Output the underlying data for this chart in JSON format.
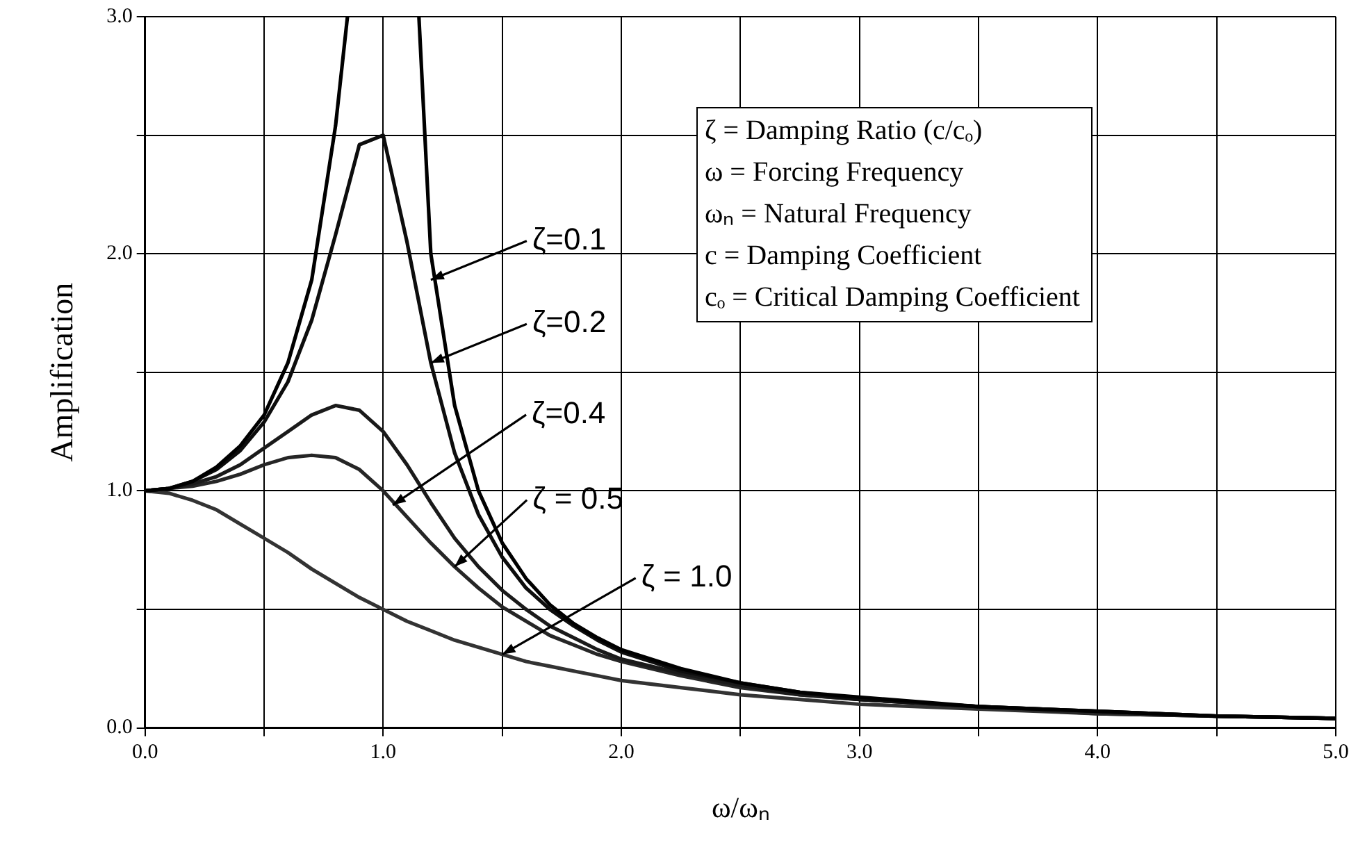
{
  "chart_data": {
    "type": "line",
    "xlabel": "ω/ωₙ",
    "ylabel": "Amplification",
    "xlim": [
      0,
      5
    ],
    "ylim": [
      0,
      3
    ],
    "xticks": [
      {
        "value": 0,
        "label": "0.0"
      },
      {
        "value": 0.5,
        "label": null
      },
      {
        "value": 1,
        "label": "1.0"
      },
      {
        "value": 1.5,
        "label": null
      },
      {
        "value": 2,
        "label": "2.0"
      },
      {
        "value": 2.5,
        "label": null
      },
      {
        "value": 3,
        "label": "3.0"
      },
      {
        "value": 3.5,
        "label": null
      },
      {
        "value": 4,
        "label": "4.0"
      },
      {
        "value": 4.5,
        "label": null
      },
      {
        "value": 5,
        "label": "5.0"
      }
    ],
    "yticks": [
      {
        "value": 0,
        "label": "0.0"
      },
      {
        "value": 0.5,
        "label": null
      },
      {
        "value": 1,
        "label": "1.0"
      },
      {
        "value": 1.5,
        "label": null
      },
      {
        "value": 2,
        "label": "2.0"
      },
      {
        "value": 2.5,
        "label": null
      },
      {
        "value": 3,
        "label": "3.0"
      }
    ],
    "grid": true,
    "legend": false,
    "marker": "none",
    "line_style": "solid",
    "x": [
      0,
      0.1,
      0.2,
      0.3,
      0.4,
      0.5,
      0.6,
      0.7,
      0.8,
      0.9,
      1.0,
      1.1,
      1.2,
      1.3,
      1.4,
      1.5,
      1.6,
      1.7,
      1.8,
      1.9,
      2.0,
      2.25,
      2.5,
      2.75,
      3,
      3.5,
      4,
      4.5,
      5
    ],
    "series": [
      {
        "color": "#000000",
        "x": [
          0,
          0.1,
          0.2,
          0.3,
          0.4,
          0.5,
          0.6,
          0.7,
          0.8,
          0.85,
          1.0,
          1.15,
          1.2,
          1.3,
          1.4,
          1.5,
          1.6,
          1.7,
          1.8,
          1.9,
          2.0,
          2.25,
          2.5,
          2.75,
          3,
          3.5,
          4,
          4.5,
          5
        ],
        "values": [
          1.0,
          1.01,
          1.04,
          1.1,
          1.19,
          1.32,
          1.54,
          1.89,
          2.54,
          3.0,
          null,
          3.0,
          2.0,
          1.36,
          1.0,
          0.78,
          0.63,
          0.52,
          0.44,
          0.38,
          0.33,
          0.25,
          0.19,
          0.15,
          0.13,
          0.09,
          0.07,
          0.05,
          0.04
        ]
      },
      {
        "color": "#0d0d0d",
        "values": [
          1.0,
          1.01,
          1.04,
          1.09,
          1.17,
          1.29,
          1.46,
          1.72,
          2.08,
          2.46,
          2.5,
          2.05,
          1.54,
          1.16,
          0.9,
          0.72,
          0.59,
          0.5,
          0.43,
          0.37,
          0.32,
          0.24,
          0.19,
          0.15,
          0.12,
          0.09,
          0.07,
          0.05,
          0.04
        ]
      },
      {
        "color": "#1a1a1a",
        "values": [
          1.0,
          1.01,
          1.03,
          1.06,
          1.11,
          1.18,
          1.25,
          1.32,
          1.36,
          1.34,
          1.25,
          1.11,
          0.95,
          0.8,
          0.68,
          0.58,
          0.5,
          0.43,
          0.38,
          0.33,
          0.29,
          0.23,
          0.18,
          0.14,
          0.12,
          0.09,
          0.07,
          0.05,
          0.04
        ]
      },
      {
        "color": "#262626",
        "values": [
          1.0,
          1.01,
          1.02,
          1.04,
          1.07,
          1.11,
          1.14,
          1.15,
          1.14,
          1.09,
          1.0,
          0.89,
          0.78,
          0.68,
          0.59,
          0.51,
          0.45,
          0.39,
          0.35,
          0.31,
          0.28,
          0.22,
          0.17,
          0.14,
          0.12,
          0.09,
          0.06,
          0.05,
          0.04
        ]
      },
      {
        "color": "#333333",
        "values": [
          1.0,
          0.99,
          0.96,
          0.92,
          0.86,
          0.8,
          0.74,
          0.67,
          0.61,
          0.55,
          0.5,
          0.45,
          0.41,
          0.37,
          0.34,
          0.31,
          0.28,
          0.26,
          0.24,
          0.22,
          0.2,
          0.17,
          0.14,
          0.12,
          0.1,
          0.08,
          0.06,
          0.05,
          0.04
        ]
      }
    ],
    "annotations": [
      {
        "text": "ζ=0.1",
        "x": 1.2,
        "y": 1.89
      },
      {
        "text": "ζ=0.2",
        "x": 1.2,
        "y": 1.54
      },
      {
        "text": "ζ=0.4",
        "x": 1.04,
        "y": 0.94
      },
      {
        "text": "ζ = 0.5",
        "x": 1.3,
        "y": 0.68
      },
      {
        "text": "ζ = 1.0",
        "x": 1.5,
        "y": 0.31
      },
      "ζ = Damping Ratio (c/cₒ)",
      "ω = Forcing Frequency",
      "ωₙ = Natural Frequency",
      "c = Damping Coefficient",
      "cₒ = Critical Damping Coefficient"
    ]
  }
}
